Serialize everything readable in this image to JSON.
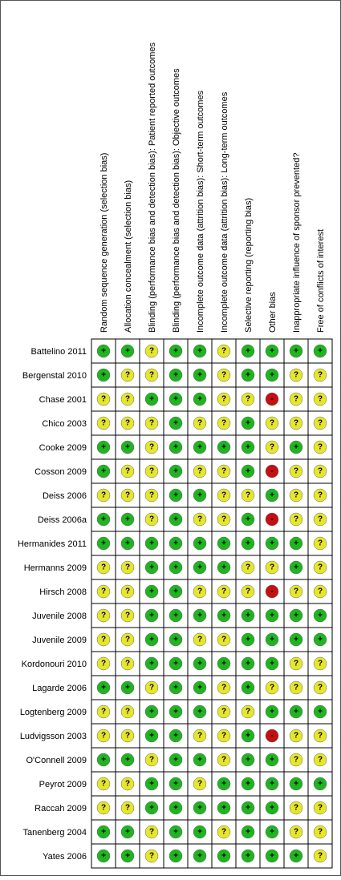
{
  "columns": [
    "Random sequence generation (selection bias)",
    "Allocation concealment (selection bias)",
    "Blinding (performance bias and detection bias): Patient reported outcomes",
    "Blinding (performance bias and detection bias): Objective outcomes",
    "Incomplete outcome data (attrition bias): Short-term outcomes",
    "Incomplete outcome data (attrition bias): Long-term outcomes",
    "Selective reporting (reporting bias)",
    "Other bias",
    "Inappropriate influence of sponsor prevented?",
    "Free of conflicts of interest"
  ],
  "rows": [
    {
      "study": "Battelino 2011",
      "judgments": [
        "+",
        "+",
        "?",
        "+",
        "+",
        "?",
        "+",
        "+",
        "+",
        "+"
      ]
    },
    {
      "study": "Bergenstal 2010",
      "judgments": [
        "+",
        "?",
        "?",
        "+",
        "+",
        "?",
        "+",
        "+",
        "?",
        "?"
      ]
    },
    {
      "study": "Chase 2001",
      "judgments": [
        "?",
        "?",
        "+",
        "+",
        "+",
        "?",
        "?",
        "-",
        "?",
        "?"
      ]
    },
    {
      "study": "Chico 2003",
      "judgments": [
        "?",
        "?",
        "?",
        "+",
        "?",
        "?",
        "+",
        "?",
        "?",
        "?"
      ]
    },
    {
      "study": "Cooke 2009",
      "judgments": [
        "+",
        "+",
        "?",
        "+",
        "+",
        "+",
        "+",
        "?",
        "+",
        "?"
      ]
    },
    {
      "study": "Cosson 2009",
      "judgments": [
        "+",
        "?",
        "?",
        "+",
        "?",
        "?",
        "+",
        "-",
        "?",
        "?"
      ]
    },
    {
      "study": "Deiss 2006",
      "judgments": [
        "?",
        "?",
        "?",
        "+",
        "+",
        "?",
        "?",
        "+",
        "?",
        "?"
      ]
    },
    {
      "study": "Deiss 2006a",
      "judgments": [
        "+",
        "+",
        "?",
        "+",
        "?",
        "?",
        "+",
        "-",
        "?",
        "?"
      ]
    },
    {
      "study": "Hermanides 2011",
      "judgments": [
        "+",
        "+",
        "+",
        "+",
        "+",
        "+",
        "+",
        "+",
        "+",
        "?"
      ]
    },
    {
      "study": "Hermanns 2009",
      "judgments": [
        "?",
        "?",
        "+",
        "+",
        "+",
        "+",
        "?",
        "?",
        "+",
        "?"
      ]
    },
    {
      "study": "Hirsch 2008",
      "judgments": [
        "?",
        "?",
        "+",
        "+",
        "?",
        "?",
        "?",
        "-",
        "?",
        "?"
      ]
    },
    {
      "study": "Juvenile 2008",
      "judgments": [
        "?",
        "?",
        "+",
        "+",
        "+",
        "+",
        "+",
        "+",
        "+",
        "+"
      ]
    },
    {
      "study": "Juvenile 2009",
      "judgments": [
        "?",
        "?",
        "+",
        "+",
        "?",
        "?",
        "+",
        "+",
        "+",
        "+"
      ]
    },
    {
      "study": "Kordonouri 2010",
      "judgments": [
        "?",
        "?",
        "+",
        "+",
        "+",
        "+",
        "+",
        "+",
        "?",
        "?"
      ]
    },
    {
      "study": "Lagarde 2006",
      "judgments": [
        "+",
        "+",
        "?",
        "+",
        "+",
        "?",
        "+",
        "?",
        "?",
        "?"
      ]
    },
    {
      "study": "Logtenberg 2009",
      "judgments": [
        "?",
        "?",
        "+",
        "+",
        "+",
        "?",
        "?",
        "+",
        "+",
        "+"
      ]
    },
    {
      "study": "Ludvigsson 2003",
      "judgments": [
        "?",
        "?",
        "+",
        "+",
        "?",
        "?",
        "+",
        "-",
        "?",
        "?"
      ]
    },
    {
      "study": "O'Connell 2009",
      "judgments": [
        "+",
        "+",
        "?",
        "+",
        "+",
        "?",
        "+",
        "+",
        "?",
        "?"
      ]
    },
    {
      "study": "Peyrot 2009",
      "judgments": [
        "?",
        "?",
        "+",
        "+",
        "?",
        "+",
        "+",
        "+",
        "+",
        "+"
      ]
    },
    {
      "study": "Raccah 2009",
      "judgments": [
        "?",
        "?",
        "+",
        "+",
        "+",
        "+",
        "+",
        "+",
        "?",
        "?"
      ]
    },
    {
      "study": "Tanenberg 2004",
      "judgments": [
        "+",
        "+",
        "?",
        "+",
        "+",
        "?",
        "+",
        "+",
        "?",
        "?"
      ]
    },
    {
      "study": "Yates 2006",
      "judgments": [
        "+",
        "+",
        "?",
        "+",
        "+",
        "+",
        "+",
        "+",
        "+",
        "?"
      ]
    }
  ]
}
